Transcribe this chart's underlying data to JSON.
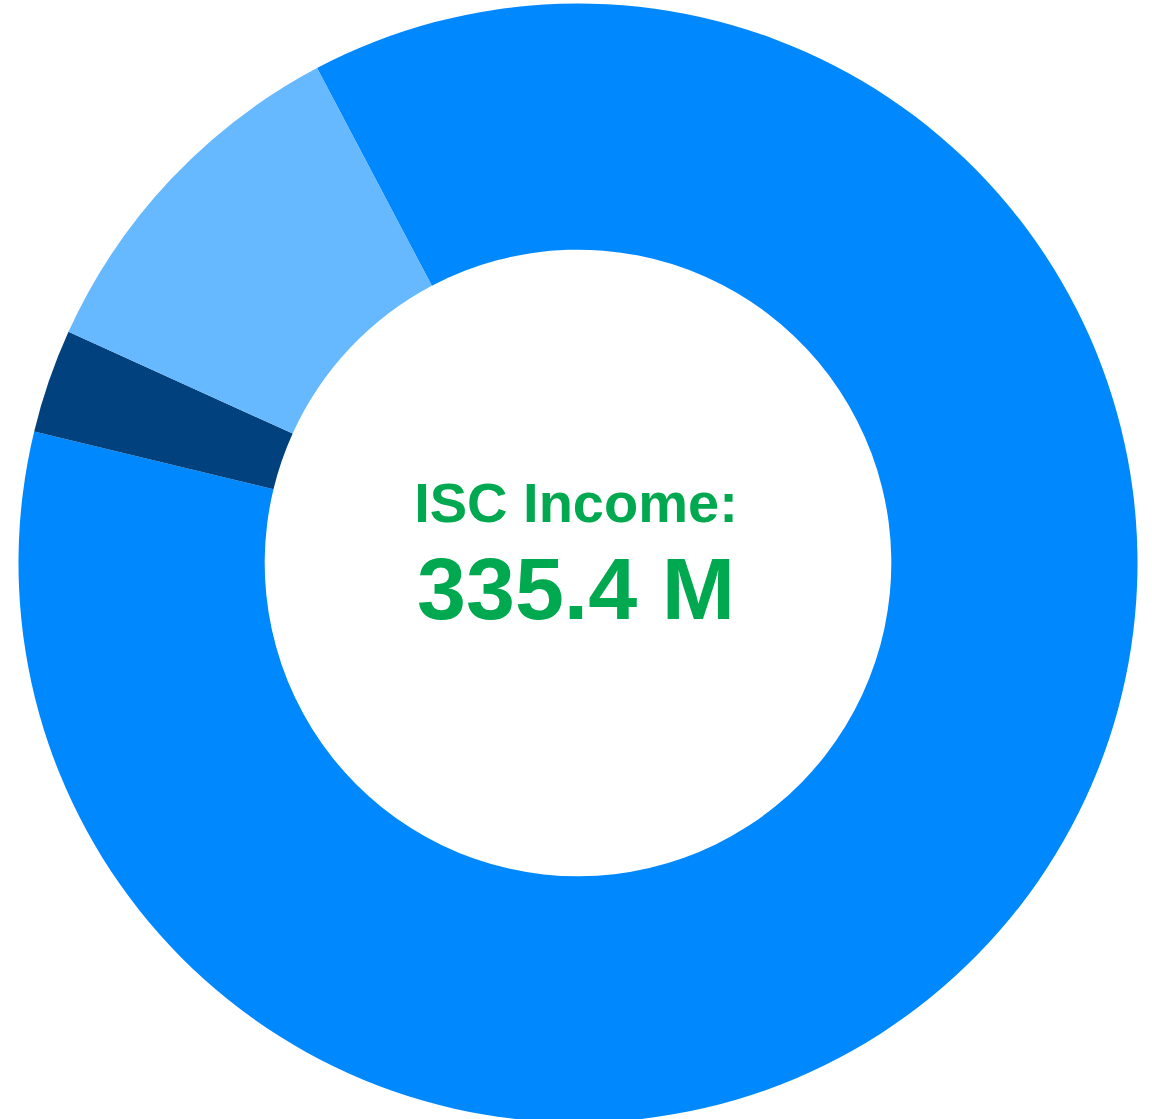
{
  "chart_data": {
    "type": "donut",
    "title": "ISC Income:",
    "subtitle": "335.4 M",
    "categories": [
      null,
      null,
      null
    ],
    "values": [
      86.5,
      3.0,
      10.5
    ],
    "colors": [
      "#0088ff",
      "#00417e",
      "#66b8ff"
    ]
  }
}
